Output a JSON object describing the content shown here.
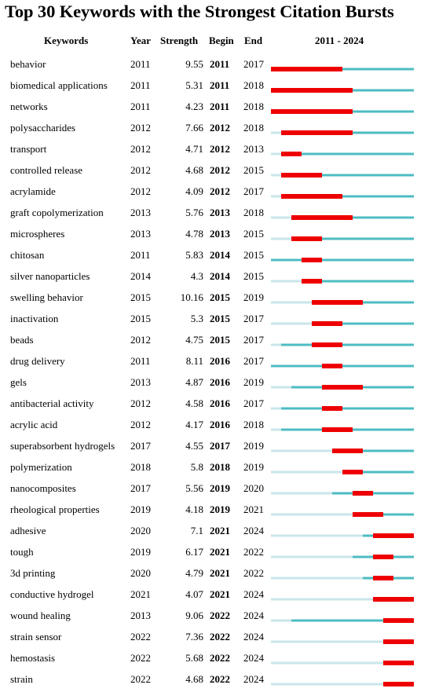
{
  "title": "Top 30 Keywords with the Strongest Citation Bursts",
  "headers": {
    "keywords": "Keywords",
    "year": "Year",
    "strength": "Strength",
    "begin": "Begin",
    "end": "End",
    "range": "2011 - 2024"
  },
  "colors": {
    "burst": "#ee0000",
    "active": "#4dbcc2",
    "inactive": "#c9e6ea"
  },
  "chart_data": {
    "type": "table",
    "timeline": {
      "start": 2011,
      "end": 2024
    },
    "columns": [
      "Keywords",
      "Year",
      "Strength",
      "Begin",
      "End",
      "2011 - 2024"
    ],
    "rows": [
      {
        "keyword": "behavior",
        "year": 2011,
        "strength": "9.55",
        "begin": 2011,
        "end": 2017
      },
      {
        "keyword": "biomedical applications",
        "year": 2011,
        "strength": "5.31",
        "begin": 2011,
        "end": 2018
      },
      {
        "keyword": "networks",
        "year": 2011,
        "strength": "4.23",
        "begin": 2011,
        "end": 2018
      },
      {
        "keyword": "polysaccharides",
        "year": 2012,
        "strength": "7.66",
        "begin": 2012,
        "end": 2018
      },
      {
        "keyword": "transport",
        "year": 2012,
        "strength": "4.71",
        "begin": 2012,
        "end": 2013
      },
      {
        "keyword": "controlled release",
        "year": 2012,
        "strength": "4.68",
        "begin": 2012,
        "end": 2015
      },
      {
        "keyword": "acrylamide",
        "year": 2012,
        "strength": "4.09",
        "begin": 2012,
        "end": 2017
      },
      {
        "keyword": "graft copolymerization",
        "year": 2013,
        "strength": "5.76",
        "begin": 2013,
        "end": 2018
      },
      {
        "keyword": "microspheres",
        "year": 2013,
        "strength": "4.78",
        "begin": 2013,
        "end": 2015
      },
      {
        "keyword": "chitosan",
        "year": 2011,
        "strength": "5.83",
        "begin": 2014,
        "end": 2015
      },
      {
        "keyword": "silver nanoparticles",
        "year": 2014,
        "strength": "4.3",
        "begin": 2014,
        "end": 2015
      },
      {
        "keyword": "swelling behavior",
        "year": 2015,
        "strength": "10.16",
        "begin": 2015,
        "end": 2019
      },
      {
        "keyword": "inactivation",
        "year": 2015,
        "strength": "5.3",
        "begin": 2015,
        "end": 2017
      },
      {
        "keyword": "beads",
        "year": 2012,
        "strength": "4.75",
        "begin": 2015,
        "end": 2017
      },
      {
        "keyword": "drug delivery",
        "year": 2011,
        "strength": "8.11",
        "begin": 2016,
        "end": 2017
      },
      {
        "keyword": "gels",
        "year": 2013,
        "strength": "4.87",
        "begin": 2016,
        "end": 2019
      },
      {
        "keyword": "antibacterial activity",
        "year": 2012,
        "strength": "4.58",
        "begin": 2016,
        "end": 2017
      },
      {
        "keyword": "acrylic acid",
        "year": 2012,
        "strength": "4.17",
        "begin": 2016,
        "end": 2018
      },
      {
        "keyword": "superabsorbent hydrogels",
        "year": 2017,
        "strength": "4.55",
        "begin": 2017,
        "end": 2019
      },
      {
        "keyword": "polymerization",
        "year": 2018,
        "strength": "5.8",
        "begin": 2018,
        "end": 2019
      },
      {
        "keyword": "nanocomposites",
        "year": 2017,
        "strength": "5.56",
        "begin": 2019,
        "end": 2020
      },
      {
        "keyword": "rheological properties",
        "year": 2019,
        "strength": "4.18",
        "begin": 2019,
        "end": 2021
      },
      {
        "keyword": "adhesive",
        "year": 2020,
        "strength": "7.1",
        "begin": 2021,
        "end": 2024
      },
      {
        "keyword": "tough",
        "year": 2019,
        "strength": "6.17",
        "begin": 2021,
        "end": 2022
      },
      {
        "keyword": "3d printing",
        "year": 2020,
        "strength": "4.79",
        "begin": 2021,
        "end": 2022
      },
      {
        "keyword": "conductive hydrogel",
        "year": 2021,
        "strength": "4.07",
        "begin": 2021,
        "end": 2024
      },
      {
        "keyword": "wound healing",
        "year": 2013,
        "strength": "9.06",
        "begin": 2022,
        "end": 2024
      },
      {
        "keyword": "strain sensor",
        "year": 2022,
        "strength": "7.36",
        "begin": 2022,
        "end": 2024
      },
      {
        "keyword": "hemostasis",
        "year": 2022,
        "strength": "5.68",
        "begin": 2022,
        "end": 2024
      },
      {
        "keyword": "strain",
        "year": 2022,
        "strength": "4.68",
        "begin": 2022,
        "end": 2024
      }
    ]
  }
}
